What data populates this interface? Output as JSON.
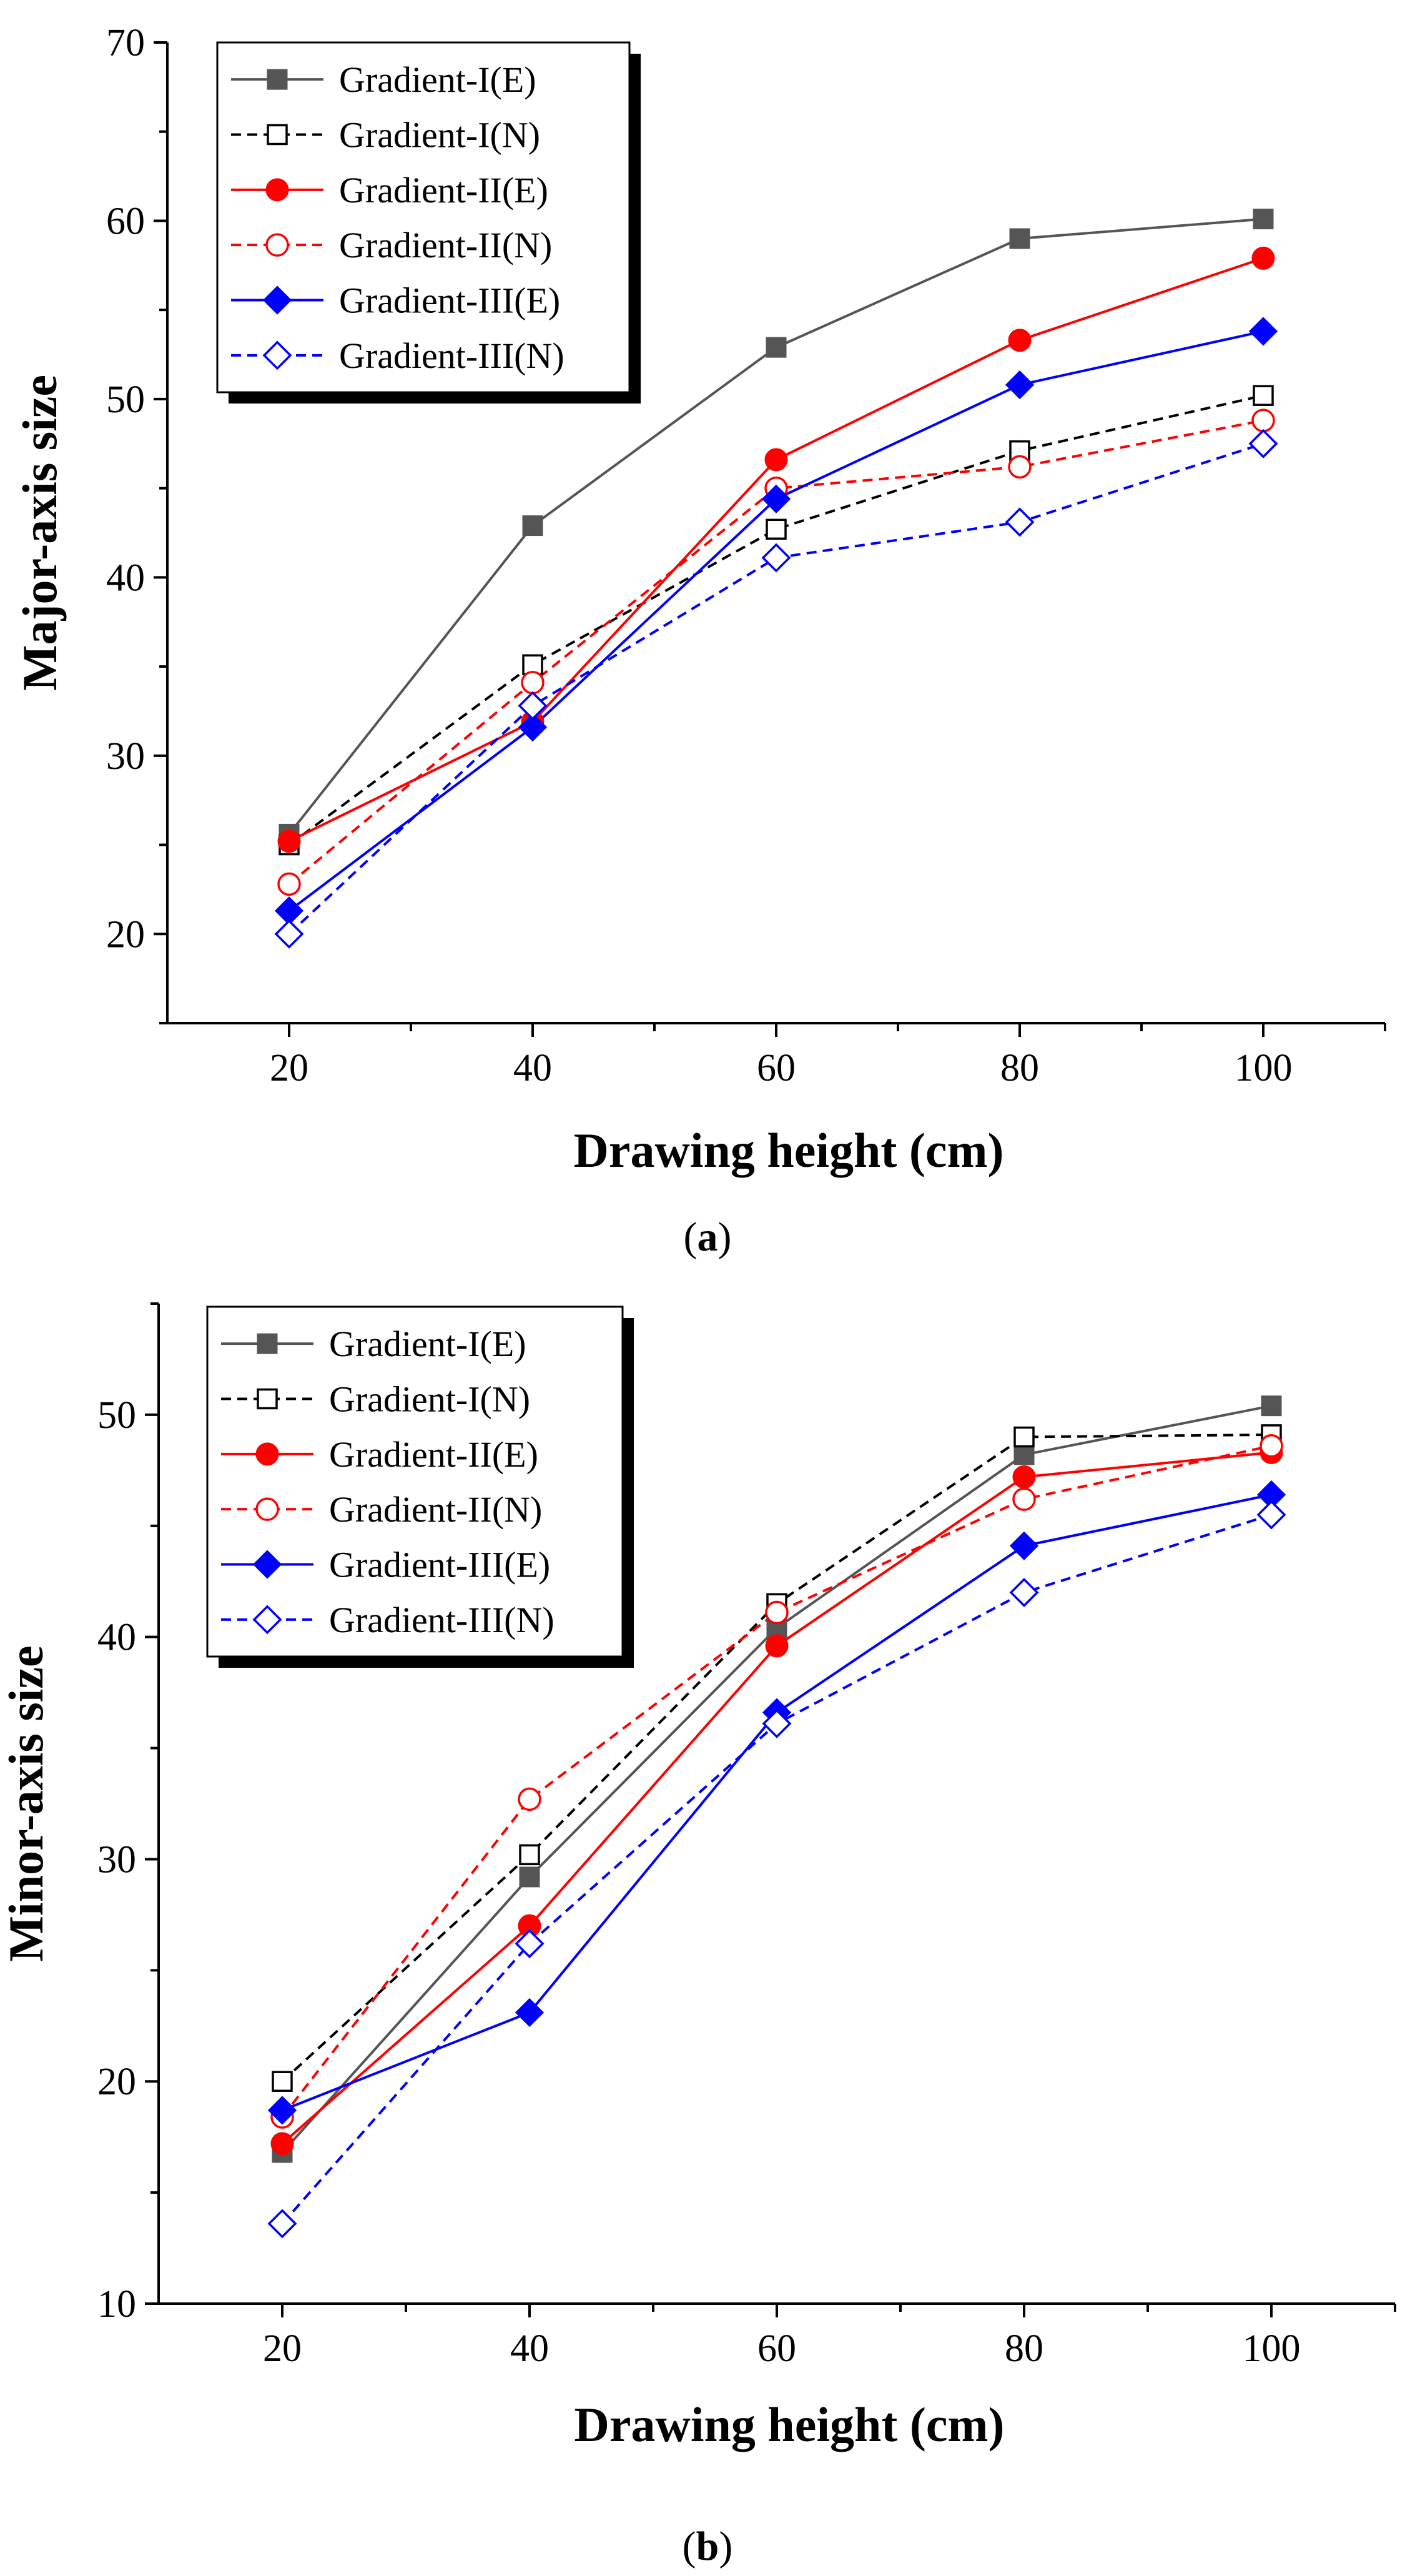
{
  "chart_data": [
    {
      "type": "line",
      "panel": "a",
      "xlabel": "Drawing height (cm)",
      "ylabel": "Major-axis size",
      "x": [
        20,
        40,
        60,
        80,
        100
      ],
      "xlim": [
        10,
        110
      ],
      "ylim": [
        15,
        70
      ],
      "xticks": [
        20,
        40,
        60,
        80,
        100
      ],
      "yticks": [
        20,
        30,
        40,
        50,
        60,
        70
      ],
      "legend_position": "top-left",
      "grid": false,
      "series": [
        {
          "name": "Gradient-I(E)",
          "values": [
            25.6,
            42.9,
            52.9,
            59.0,
            60.1
          ],
          "color": "#555555",
          "dashed": false,
          "marker": "square",
          "filled": true
        },
        {
          "name": "Gradient-I(N)",
          "values": [
            25.0,
            35.1,
            42.7,
            47.1,
            50.2
          ],
          "color": "#000000",
          "dashed": true,
          "marker": "square",
          "filled": false
        },
        {
          "name": "Gradient-II(E)",
          "values": [
            25.2,
            31.9,
            46.6,
            53.3,
            57.9
          ],
          "color": "#ff0000",
          "dashed": false,
          "marker": "circle",
          "filled": true
        },
        {
          "name": "Gradient-II(N)",
          "values": [
            22.8,
            34.1,
            45.0,
            46.2,
            48.8
          ],
          "color": "#ff0000",
          "dashed": true,
          "marker": "circle",
          "filled": false
        },
        {
          "name": "Gradient-III(E)",
          "values": [
            21.3,
            31.6,
            44.4,
            50.8,
            53.8
          ],
          "color": "#0000ff",
          "dashed": false,
          "marker": "diamond",
          "filled": true
        },
        {
          "name": "Gradient-III(N)",
          "values": [
            20.0,
            32.8,
            41.1,
            43.1,
            47.5
          ],
          "color": "#0000ff",
          "dashed": true,
          "marker": "diamond",
          "filled": false
        }
      ]
    },
    {
      "type": "line",
      "panel": "b",
      "xlabel": "Drawing height (cm)",
      "ylabel": "Minor-axis size",
      "x": [
        20,
        40,
        60,
        80,
        100
      ],
      "xlim": [
        10,
        110
      ],
      "ylim": [
        10,
        55
      ],
      "xticks": [
        20,
        40,
        60,
        80,
        100
      ],
      "yticks": [
        10,
        20,
        30,
        40,
        50
      ],
      "legend_position": "top-left",
      "grid": false,
      "series": [
        {
          "name": "Gradient-I(E)",
          "values": [
            16.8,
            29.2,
            40.4,
            48.2,
            50.4
          ],
          "color": "#555555",
          "dashed": false,
          "marker": "square",
          "filled": true
        },
        {
          "name": "Gradient-I(N)",
          "values": [
            20.0,
            30.2,
            41.5,
            49.0,
            49.1
          ],
          "color": "#000000",
          "dashed": true,
          "marker": "square",
          "filled": false
        },
        {
          "name": "Gradient-II(E)",
          "values": [
            17.2,
            27.0,
            39.6,
            47.2,
            48.3
          ],
          "color": "#ff0000",
          "dashed": false,
          "marker": "circle",
          "filled": true
        },
        {
          "name": "Gradient-II(N)",
          "values": [
            18.4,
            32.7,
            41.1,
            46.2,
            48.6
          ],
          "color": "#ff0000",
          "dashed": true,
          "marker": "circle",
          "filled": false
        },
        {
          "name": "Gradient-III(E)",
          "values": [
            18.7,
            23.1,
            36.6,
            44.1,
            46.4
          ],
          "color": "#0000ff",
          "dashed": false,
          "marker": "diamond",
          "filled": true
        },
        {
          "name": "Gradient-III(N)",
          "values": [
            13.6,
            26.2,
            36.1,
            42.0,
            45.5
          ],
          "color": "#0000ff",
          "dashed": true,
          "marker": "diamond",
          "filled": false
        }
      ]
    }
  ],
  "captions": {
    "a": {
      "open": "(",
      "letter": "a",
      "close": ")"
    },
    "b": {
      "open": "(",
      "letter": "b",
      "close": ")"
    }
  }
}
